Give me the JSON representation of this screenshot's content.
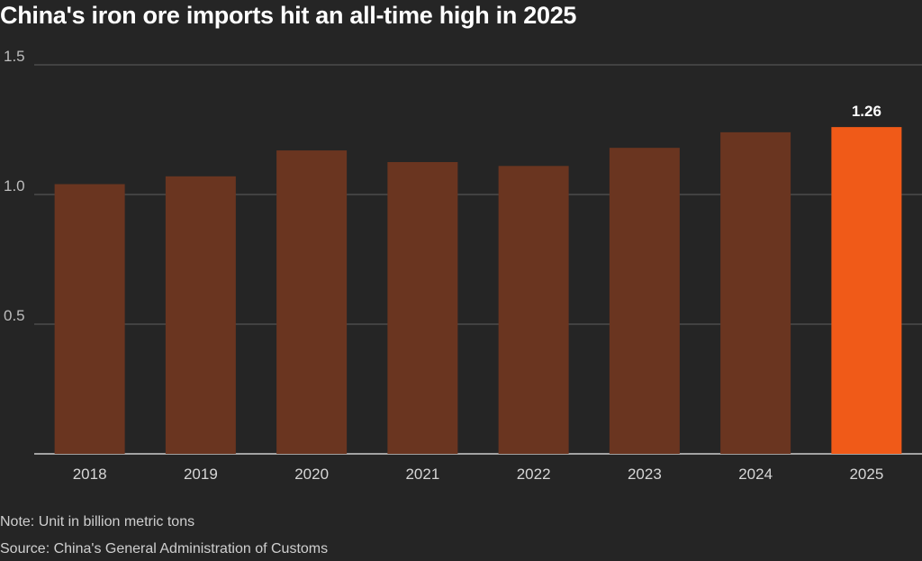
{
  "title": "China's iron ore imports hit an all-time high in 2025",
  "chart_data": {
    "type": "bar",
    "title": "China's iron ore imports hit an all-time high in 2025",
    "categories": [
      "2018",
      "2019",
      "2020",
      "2021",
      "2022",
      "2023",
      "2024",
      "2025"
    ],
    "values": [
      1.04,
      1.07,
      1.17,
      1.125,
      1.11,
      1.18,
      1.24,
      1.26
    ],
    "highlight_index": 7,
    "highlight_label": "1.26",
    "ylim": [
      0,
      1.5
    ],
    "yticks": [
      0.5,
      1.0,
      1.5
    ],
    "ytick_labels": [
      "0.5",
      "1.0",
      "1.5"
    ],
    "xlabel": "",
    "ylabel": "",
    "grid": true,
    "colors": {
      "bar": "#6a3520",
      "highlight": "#f05a18",
      "grid": "#5e5e5e",
      "axis": "#cccccc"
    }
  },
  "note": "Note: Unit in billion metric tons",
  "source": "Source: China's General Administration of Customs"
}
